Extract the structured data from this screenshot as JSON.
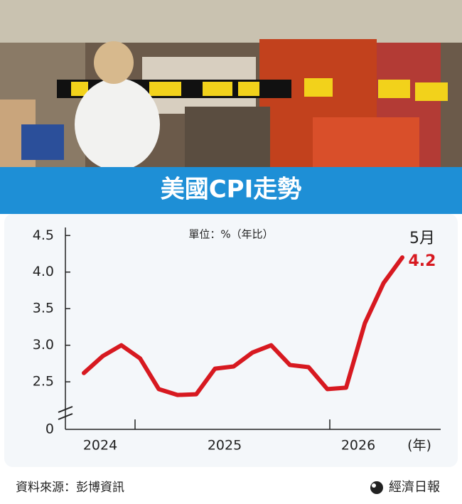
{
  "chart_data": {
    "type": "line",
    "title": "美國CPI走勢",
    "unit_label": "單位：%（年比）",
    "categories": [
      null,
      null,
      null,
      null,
      null,
      null,
      null,
      null,
      null,
      null,
      null,
      null,
      null,
      null,
      null,
      null,
      null,
      null
    ],
    "series": [
      {
        "name": "美國CPI",
        "color": "#d71920",
        "values": [
          2.62,
          2.85,
          3.0,
          2.82,
          2.4,
          2.32,
          2.33,
          2.68,
          2.71,
          2.9,
          3.0,
          2.73,
          2.7,
          2.4,
          2.42,
          3.3,
          3.85,
          4.2
        ]
      }
    ],
    "last_point_label": "5月",
    "year_labels": [
      "2024",
      "2025",
      "2026"
    ],
    "x_unit": "(年)",
    "ylim": [
      1.85,
      4.6
    ],
    "yticks": [
      {
        "value": 2.5,
        "label": "2.5"
      },
      {
        "value": 3.0,
        "label": "3.0"
      },
      {
        "value": 3.5,
        "label": "3.5"
      },
      {
        "value": 4.0,
        "label": "4.0"
      },
      {
        "value": 4.5,
        "label": "4.5"
      }
    ],
    "y_break_label": "0",
    "source": "資料來源：彭博資訊",
    "publisher": "經濟日報"
  }
}
